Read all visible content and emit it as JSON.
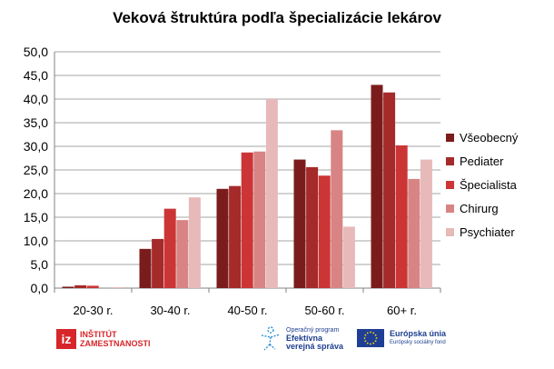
{
  "chart_data": {
    "type": "bar",
    "title": "Veková štruktúra podľa špecializácie lekárov",
    "categories": [
      "20-30 r.",
      "30-40 r.",
      "40-50 r.",
      "50-60 r.",
      "60+ r."
    ],
    "series": [
      {
        "name": "Všeobecný",
        "color": "#7b1c1c",
        "values": [
          0.3,
          8.3,
          21.0,
          27.2,
          43.0
        ]
      },
      {
        "name": "Pediater",
        "color": "#a52a2a",
        "values": [
          0.6,
          10.4,
          21.6,
          25.6,
          41.4
        ]
      },
      {
        "name": "Špecialista",
        "color": "#cc3535",
        "values": [
          0.5,
          16.8,
          28.7,
          23.8,
          30.2
        ]
      },
      {
        "name": "Chirurg",
        "color": "#d88484",
        "values": [
          0.0,
          14.4,
          28.9,
          33.4,
          23.1
        ]
      },
      {
        "name": "Psychiater",
        "color": "#e8b9b9",
        "values": [
          0.2,
          19.2,
          40.0,
          13.0,
          27.2
        ]
      }
    ],
    "ylim": [
      0,
      50
    ],
    "yticks": [
      "0,0",
      "5,0",
      "10,0",
      "15,0",
      "20,0",
      "25,0",
      "30,0",
      "35,0",
      "40,0",
      "45,0",
      "50,0"
    ],
    "grid": true,
    "legend_position": "right"
  },
  "footer": {
    "iz_box": "iz",
    "iz_line1": "INŠTITÚT",
    "iz_line2": "ZAMESTNANOSTI",
    "oper_line1": "Operačný program",
    "oper_line2": "Efektívna",
    "oper_line3": "verejná správa",
    "eu_line1": "Európska únia",
    "eu_line2": "Európsky sociálny fond"
  }
}
